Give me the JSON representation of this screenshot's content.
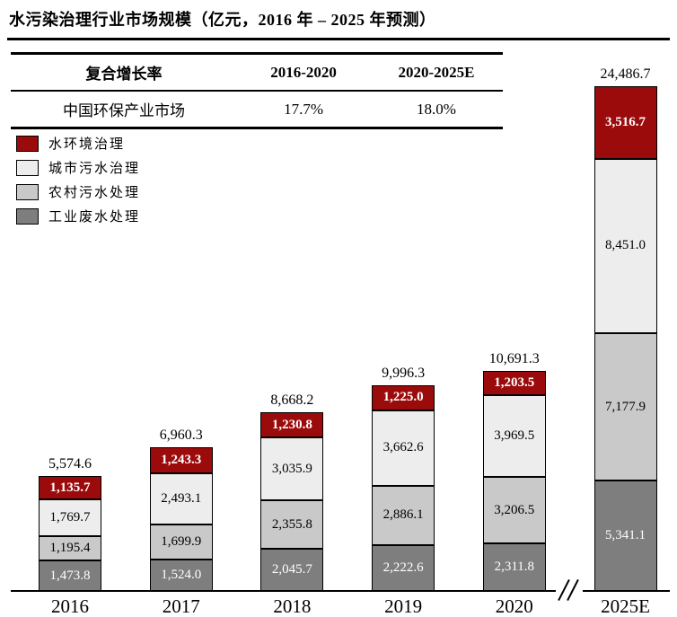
{
  "title": "水污染治理行业市场规模（亿元，2016 年 – 2025 年预测）",
  "table": {
    "headers": [
      "复合增长率",
      "2016-2020",
      "2020-2025E"
    ],
    "rows": [
      {
        "name": "中国环保产业市场",
        "cagr_2016_2020": "17.7%",
        "cagr_2020_2025e": "18.0%"
      }
    ]
  },
  "legend": [
    {
      "label": "水环境治理",
      "color": "#9C0B0B"
    },
    {
      "label": "城市污水治理",
      "color": "#EDEDED"
    },
    {
      "label": "农村污水处理",
      "color": "#C9C9C9"
    },
    {
      "label": "工业废水处理",
      "color": "#7E7E7E"
    }
  ],
  "chart_data": {
    "type": "bar",
    "stacked": true,
    "title": "水污染治理行业市场规模（亿元，2016 年 – 2025 年预测）",
    "unit": "亿元",
    "categories": [
      "2016",
      "2017",
      "2018",
      "2019",
      "2020",
      "2025E"
    ],
    "series": [
      {
        "name": "工业废水处理",
        "color": "#7E7E7E",
        "text_color": "#FFFFFF",
        "bold": false,
        "values": [
          1473.8,
          1524.0,
          2045.7,
          2222.6,
          2311.8,
          5341.1
        ]
      },
      {
        "name": "农村污水处理",
        "color": "#C9C9C9",
        "text_color": "#000000",
        "bold": false,
        "values": [
          1195.4,
          1699.9,
          2355.8,
          2886.1,
          3206.5,
          7177.9
        ]
      },
      {
        "name": "城市污水治理",
        "color": "#EDEDED",
        "text_color": "#000000",
        "bold": false,
        "values": [
          1769.7,
          2493.1,
          3035.9,
          3662.6,
          3969.5,
          8451.0
        ]
      },
      {
        "name": "水环境治理",
        "color": "#9C0B0B",
        "text_color": "#FFFFFF",
        "bold": true,
        "values": [
          1135.7,
          1243.3,
          1230.8,
          1225.0,
          1203.5,
          3516.7
        ]
      }
    ],
    "totals": [
      5574.6,
      6960.3,
      8668.2,
      9996.3,
      10691.3,
      24486.7
    ],
    "ylim": [
      0,
      24486.7
    ],
    "x_axis_break_between": [
      "2020",
      "2025E"
    ],
    "legend_position": "upper-left",
    "grid": false
  }
}
